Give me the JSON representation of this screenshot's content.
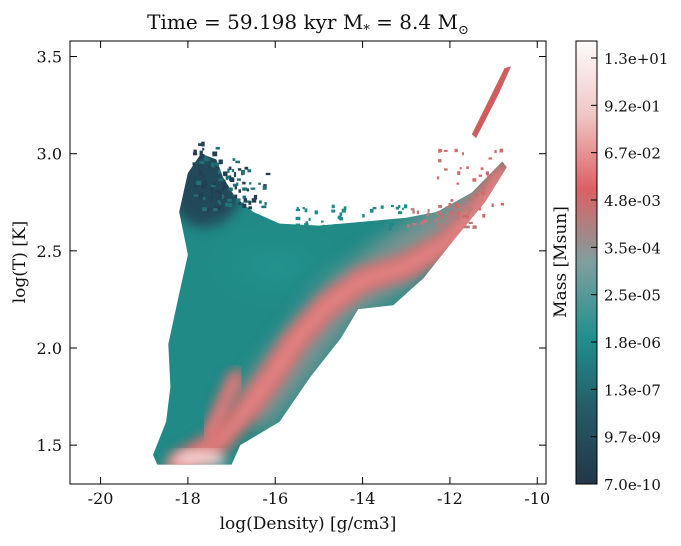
{
  "chart_data": {
    "type": "heatmap",
    "title": "Time = 59.198 kyr   M",
    "title_sub": "*",
    "title_mid": " = 8.4 M",
    "title_sym": "⊙",
    "xlabel": "log(Density) [g/cm3]",
    "ylabel": "log(T) [K]",
    "xlim": [
      -20.7,
      -9.8
    ],
    "ylim": [
      1.3,
      3.58
    ],
    "xticks": [
      -20,
      -18,
      -16,
      -14,
      -12,
      -10
    ],
    "xtick_labels": [
      "-20",
      "-18",
      "-16",
      "-14",
      "-12",
      "-10"
    ],
    "yticks": [
      1.5,
      2.0,
      2.5,
      3.0,
      3.5
    ],
    "ytick_labels": [
      "1.5",
      "2.0",
      "2.5",
      "3.0",
      "3.5"
    ],
    "grid": false,
    "colorbar": {
      "label": "Mass [Msun]",
      "scale": "log",
      "tick_labels": [
        "7.0e-10",
        "9.7e-09",
        "1.3e-07",
        "1.8e-06",
        "2.5e-05",
        "3.5e-04",
        "4.8e-03",
        "6.7e-02",
        "9.2e-01",
        "1.3e+01"
      ],
      "colors": [
        "#233747",
        "#245a66",
        "#21908d",
        "#7f9f9e",
        "#dd6063",
        "#f0c6c6",
        "#fefbfb"
      ]
    },
    "regions": [
      {
        "name": "main-distribution",
        "outline": [
          [
            -18.7,
            1.4
          ],
          [
            -17.0,
            1.4
          ],
          [
            -16.8,
            1.5
          ],
          [
            -15.9,
            1.62
          ],
          [
            -15.2,
            1.85
          ],
          [
            -14.5,
            2.05
          ],
          [
            -14.1,
            2.2
          ],
          [
            -13.3,
            2.22
          ],
          [
            -12.6,
            2.36
          ],
          [
            -11.9,
            2.56
          ],
          [
            -11.2,
            2.75
          ],
          [
            -10.7,
            2.93
          ],
          [
            -10.8,
            2.96
          ],
          [
            -11.5,
            2.8
          ],
          [
            -12.3,
            2.7
          ],
          [
            -13.0,
            2.67
          ],
          [
            -14.0,
            2.65
          ],
          [
            -15.0,
            2.63
          ],
          [
            -15.9,
            2.64
          ],
          [
            -16.5,
            2.7
          ],
          [
            -16.9,
            2.77
          ],
          [
            -17.2,
            2.88
          ],
          [
            -17.35,
            2.97
          ],
          [
            -17.7,
            3.0
          ],
          [
            -18.0,
            2.9
          ],
          [
            -18.2,
            2.7
          ],
          [
            -18.0,
            2.48
          ],
          [
            -18.2,
            2.28
          ],
          [
            -18.45,
            2.02
          ],
          [
            -18.4,
            1.8
          ],
          [
            -18.5,
            1.62
          ],
          [
            -18.8,
            1.45
          ]
        ]
      },
      {
        "name": "hot-tail",
        "outline": [
          [
            -11.4,
            3.08
          ],
          [
            -10.9,
            3.3
          ],
          [
            -10.6,
            3.45
          ],
          [
            -10.75,
            3.44
          ],
          [
            -11.1,
            3.28
          ],
          [
            -11.5,
            3.1
          ]
        ]
      }
    ],
    "ridges": [
      {
        "name": "dense-ridge",
        "points": [
          [
            -18.2,
            1.4
          ],
          [
            -17.3,
            1.52
          ],
          [
            -16.6,
            1.7
          ],
          [
            -16.1,
            1.85
          ],
          [
            -15.5,
            2.05
          ],
          [
            -14.8,
            2.22
          ],
          [
            -14.0,
            2.35
          ],
          [
            -13.0,
            2.42
          ],
          [
            -12.0,
            2.55
          ],
          [
            -11.2,
            2.75
          ],
          [
            -10.8,
            2.9
          ]
        ]
      },
      {
        "name": "cool-ridge",
        "points": [
          [
            -17.5,
            1.55
          ],
          [
            -17.2,
            1.7
          ],
          [
            -16.9,
            1.85
          ]
        ]
      }
    ]
  }
}
